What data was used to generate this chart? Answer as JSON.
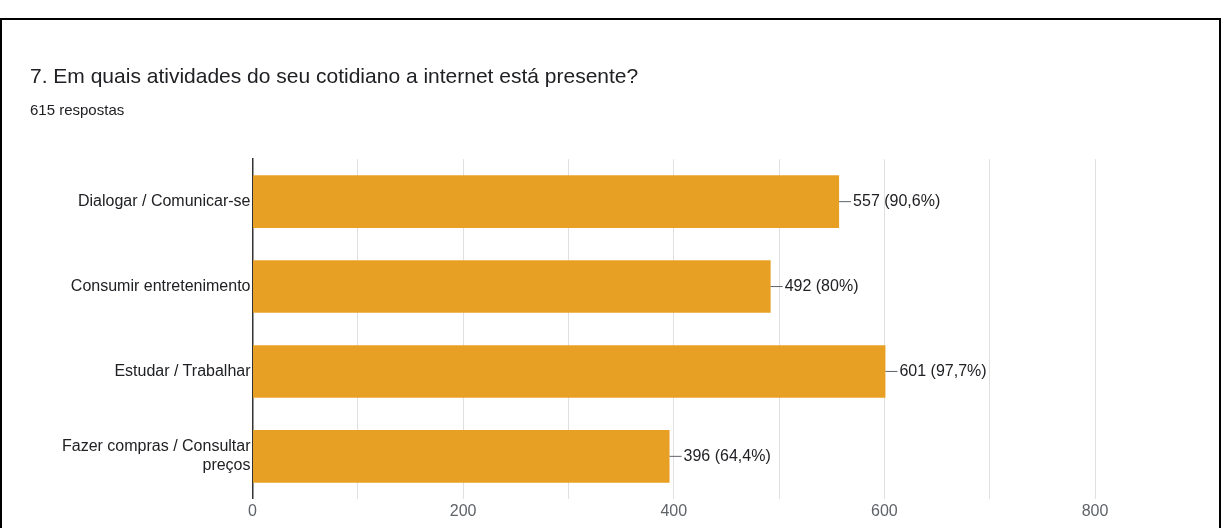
{
  "chart_data": {
    "type": "bar",
    "orientation": "horizontal",
    "title": "7. Em quais atividades do seu cotidiano a internet está presente?",
    "subtitle": "615 respostas",
    "categories": [
      "Dialogar / Comunicar-se",
      "Consumir entretenimento",
      "Estudar / Trabalhar",
      "Fazer compras / Consultar preços"
    ],
    "values": [
      557,
      492,
      601,
      396
    ],
    "color": "#e8a024",
    "value_labels": [
      "557 (90,6%)",
      "492 (80%)",
      "601 (97,7%)",
      "396 (64,4%)"
    ],
    "xlim": [
      0,
      800
    ],
    "xticks": [
      0,
      {
        "value": 100,
        "label": null
      },
      200,
      {
        "value": 300,
        "label": null
      },
      400,
      {
        "value": 500,
        "label": null
      },
      600,
      {
        "value": 700,
        "label": null
      },
      800
    ],
    "grid": "x",
    "legend": false
  }
}
